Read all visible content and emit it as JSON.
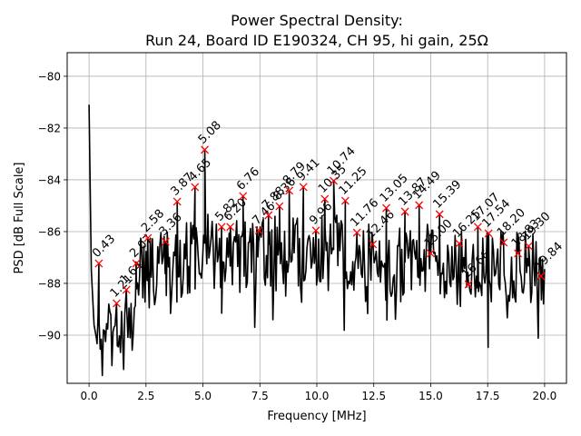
{
  "chart_data": {
    "type": "line",
    "title": [
      "Power Spectral Density:",
      "Run 24, Board ID E190324, CH 95, hi gain, 25Ω"
    ],
    "xlabel": "Frequency [MHz]",
    "ylabel": "PSD [dB Full Scale]",
    "xlim": [
      -0.96,
      20.96
    ],
    "ylim": [
      -91.86,
      -79.09
    ],
    "xticks": [
      0.0,
      2.5,
      5.0,
      7.5,
      10.0,
      12.5,
      15.0,
      17.5,
      20.0
    ],
    "xtick_labels": [
      "0.0",
      "2.5",
      "5.0",
      "7.5",
      "10.0",
      "12.5",
      "15.0",
      "17.5",
      "20.0"
    ],
    "yticks": [
      -80,
      -82,
      -84,
      -86,
      -88,
      -90
    ],
    "ytick_labels": [
      "−80",
      "−82",
      "−84",
      "−86",
      "−88",
      "−90"
    ],
    "grid": true,
    "line_color": "#000000",
    "marker_color": "#ff0000",
    "series": [
      {
        "name": "PSD",
        "start": {
          "x": 0.0,
          "y": -81.1
        },
        "x_range": [
          0.0,
          20.0
        ],
        "approx_floor": -89.5
      }
    ],
    "peaks": [
      {
        "label": "0.43",
        "x": 0.43,
        "y": -87.23
      },
      {
        "label": "1.21",
        "x": 1.21,
        "y": -88.77
      },
      {
        "label": "1.64",
        "x": 1.64,
        "y": -88.25
      },
      {
        "label": "2.07",
        "x": 2.07,
        "y": -87.23
      },
      {
        "label": "2.58",
        "x": 2.58,
        "y": -86.25
      },
      {
        "label": "3.36",
        "x": 3.36,
        "y": -86.39
      },
      {
        "label": "3.87",
        "x": 3.87,
        "y": -84.84
      },
      {
        "label": "4.65",
        "x": 4.65,
        "y": -84.28
      },
      {
        "label": "5.08",
        "x": 5.08,
        "y": -82.84
      },
      {
        "label": "5.82",
        "x": 5.82,
        "y": -85.82
      },
      {
        "label": "6.20",
        "x": 6.2,
        "y": -85.82
      },
      {
        "label": "6.76",
        "x": 6.76,
        "y": -84.63
      },
      {
        "label": "7.46",
        "x": 7.46,
        "y": -85.96
      },
      {
        "label": "7.88",
        "x": 7.88,
        "y": -85.37
      },
      {
        "label": "8.36",
        "x": 8.36,
        "y": -85.02
      },
      {
        "label": "8.79",
        "x": 8.79,
        "y": -84.42
      },
      {
        "label": "9.41",
        "x": 9.41,
        "y": -84.28
      },
      {
        "label": "9.96",
        "x": 9.96,
        "y": -85.96
      },
      {
        "label": "10.35",
        "x": 10.35,
        "y": -84.74
      },
      {
        "label": "10.74",
        "x": 10.74,
        "y": -84.04
      },
      {
        "label": "11.25",
        "x": 11.25,
        "y": -84.81
      },
      {
        "label": "11.76",
        "x": 11.76,
        "y": -86.04
      },
      {
        "label": "12.46",
        "x": 12.46,
        "y": -86.49
      },
      {
        "label": "13.05",
        "x": 13.05,
        "y": -85.09
      },
      {
        "label": "13.87",
        "x": 13.87,
        "y": -85.23
      },
      {
        "label": "14.49",
        "x": 14.49,
        "y": -84.98
      },
      {
        "label": "15.00",
        "x": 15.0,
        "y": -86.84
      },
      {
        "label": "15.39",
        "x": 15.39,
        "y": -85.33
      },
      {
        "label": "16.25",
        "x": 16.25,
        "y": -86.46
      },
      {
        "label": "16.66",
        "x": 16.66,
        "y": -88.04
      },
      {
        "label": "17.07",
        "x": 17.07,
        "y": -85.82
      },
      {
        "label": "17.54",
        "x": 17.54,
        "y": -86.07
      },
      {
        "label": "18.20",
        "x": 18.2,
        "y": -86.42
      },
      {
        "label": "18.83",
        "x": 18.83,
        "y": -86.84
      },
      {
        "label": "19.30",
        "x": 19.3,
        "y": -86.56
      },
      {
        "label": "19.84",
        "x": 19.84,
        "y": -87.72
      }
    ]
  }
}
